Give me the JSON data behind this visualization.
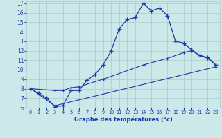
{
  "bg_color": "#cce8e8",
  "grid_color": "#aacccc",
  "line_color": "#1a3aaa",
  "xlim": [
    -0.5,
    23.5
  ],
  "ylim": [
    6,
    17.2
  ],
  "xticks": [
    0,
    1,
    2,
    3,
    4,
    5,
    6,
    7,
    8,
    9,
    10,
    11,
    12,
    13,
    14,
    15,
    16,
    17,
    18,
    19,
    20,
    21,
    22,
    23
  ],
  "yticks": [
    6,
    7,
    8,
    9,
    10,
    11,
    12,
    13,
    14,
    15,
    16,
    17
  ],
  "line1_x": [
    0,
    1,
    2,
    3,
    4,
    5,
    6,
    7,
    8,
    9,
    10,
    11,
    12,
    13,
    14,
    15,
    16,
    17,
    18,
    19,
    20,
    21,
    22,
    23
  ],
  "line1_y": [
    8.0,
    7.5,
    7.0,
    6.1,
    6.2,
    7.8,
    7.8,
    8.9,
    9.5,
    10.5,
    12.0,
    14.3,
    15.3,
    15.5,
    17.0,
    16.2,
    16.5,
    15.7,
    13.0,
    12.8,
    12.1,
    11.5,
    11.3,
    10.5
  ],
  "line2_x": [
    0,
    3,
    4,
    5,
    6,
    9,
    14,
    17,
    19,
    20,
    21,
    22,
    23
  ],
  "line2_y": [
    8.0,
    7.8,
    7.8,
    8.1,
    8.2,
    9.0,
    10.5,
    11.2,
    11.8,
    12.0,
    11.5,
    11.2,
    10.5
  ],
  "line3_x": [
    0,
    3,
    23
  ],
  "line3_y": [
    8.0,
    6.2,
    10.3
  ],
  "xlabel": "Graphe des températures (°c)"
}
